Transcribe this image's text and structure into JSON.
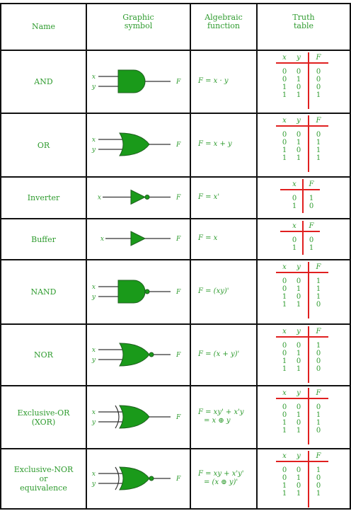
{
  "header": {
    "name": "Name",
    "symbol_line1": "Graphic",
    "symbol_line2": "symbol",
    "func_line1": "Algebraic",
    "func_line2": "function",
    "tt_line1": "Truth",
    "tt_line2": "table"
  },
  "symbol_labels": {
    "x": "x",
    "y": "y",
    "f": "F"
  },
  "tt_headers": {
    "x": "x",
    "y": "y",
    "f": "F"
  },
  "rows": [
    {
      "name": [
        "AND"
      ],
      "func": [
        "F = x · y"
      ],
      "gate": "and",
      "tt": [
        [
          "0",
          "0",
          "0"
        ],
        [
          "0",
          "1",
          "0"
        ],
        [
          "1",
          "0",
          "0"
        ],
        [
          "1",
          "1",
          "1"
        ]
      ]
    },
    {
      "name": [
        "OR"
      ],
      "func": [
        "F = x + y"
      ],
      "gate": "or",
      "tt": [
        [
          "0",
          "0",
          "0"
        ],
        [
          "0",
          "1",
          "1"
        ],
        [
          "1",
          "0",
          "1"
        ],
        [
          "1",
          "1",
          "1"
        ]
      ]
    },
    {
      "name": [
        "Inverter"
      ],
      "func": [
        "F = x'"
      ],
      "gate": "not",
      "tt": [
        [
          "0",
          "1"
        ],
        [
          "1",
          "0"
        ]
      ]
    },
    {
      "name": [
        "Buffer"
      ],
      "func": [
        "F = x"
      ],
      "gate": "buf",
      "tt": [
        [
          "0",
          "0"
        ],
        [
          "1",
          "1"
        ]
      ]
    },
    {
      "name": [
        "NAND"
      ],
      "func": [
        "F = (xy)'"
      ],
      "gate": "nand",
      "tt": [
        [
          "0",
          "0",
          "1"
        ],
        [
          "0",
          "1",
          "1"
        ],
        [
          "1",
          "0",
          "1"
        ],
        [
          "1",
          "1",
          "0"
        ]
      ]
    },
    {
      "name": [
        "NOR"
      ],
      "func": [
        "F = (x + y)'"
      ],
      "gate": "nor",
      "tt": [
        [
          "0",
          "0",
          "1"
        ],
        [
          "0",
          "1",
          "0"
        ],
        [
          "1",
          "0",
          "0"
        ],
        [
          "1",
          "1",
          "0"
        ]
      ]
    },
    {
      "name": [
        "Exclusive-OR",
        "(XOR)"
      ],
      "func": [
        "F = xy' + x'y",
        "= x ⊕ y"
      ],
      "gate": "xor",
      "tt": [
        [
          "0",
          "0",
          "0"
        ],
        [
          "0",
          "1",
          "1"
        ],
        [
          "1",
          "0",
          "1"
        ],
        [
          "1",
          "1",
          "0"
        ]
      ]
    },
    {
      "name": [
        "Exclusive-NOR",
        "or",
        "equivalence"
      ],
      "func": [
        "F = xy + x'y'",
        "= (x ⊕ y)'"
      ],
      "gate": "xnor",
      "tt": [
        [
          "0",
          "0",
          "1"
        ],
        [
          "0",
          "1",
          "0"
        ],
        [
          "1",
          "0",
          "0"
        ],
        [
          "1",
          "1",
          "1"
        ]
      ]
    }
  ],
  "colors": {
    "green": "#2e9b2e",
    "gate_fill": "#1a9a1a",
    "red": "#e02020",
    "line": "#111111"
  }
}
